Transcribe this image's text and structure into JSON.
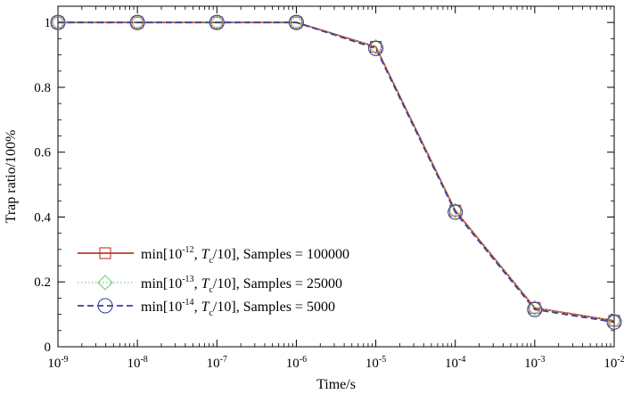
{
  "chart_data": {
    "type": "line",
    "title": "",
    "xlabel": "Time/s",
    "ylabel": "Trap ratio/100%",
    "xscale": "log",
    "xlim": [
      1e-09,
      0.01
    ],
    "ylim": [
      0,
      1.05
    ],
    "x": [
      1e-09,
      1e-08,
      1e-07,
      1e-06,
      1e-05,
      0.0001,
      0.001,
      0.01
    ],
    "x_tick_labels": [
      {
        "base": "10",
        "exp": "-9"
      },
      {
        "base": "10",
        "exp": "-8"
      },
      {
        "base": "10",
        "exp": "-7"
      },
      {
        "base": "10",
        "exp": "-6"
      },
      {
        "base": "10",
        "exp": "-5"
      },
      {
        "base": "10",
        "exp": "-4"
      },
      {
        "base": "10",
        "exp": "-3"
      },
      {
        "base": "10",
        "exp": "-2"
      }
    ],
    "y_ticks": [
      0,
      0.2,
      0.4,
      0.6,
      0.8,
      1
    ],
    "y_tick_labels": [
      "0",
      "0.2",
      "0.4",
      "0.6",
      "0.8",
      "1"
    ],
    "grid": false,
    "legend_position": "bottom-left",
    "series": [
      {
        "legend": {
          "pre": "min[10",
          "exp": "-12",
          "mid": ", ",
          "italic": "T",
          "sub": "c",
          "post": "/10], Samples = 100000"
        },
        "color": "#c0392b",
        "line": "solid",
        "marker": "square",
        "values": [
          1,
          1,
          1,
          1,
          0.925,
          0.42,
          0.12,
          0.08
        ]
      },
      {
        "legend": {
          "pre": "min[10",
          "exp": "-13",
          "mid": ", ",
          "italic": "T",
          "sub": "c",
          "post": "/10], Samples = 25000"
        },
        "color": "#7fc97f",
        "line": "dotted",
        "marker": "diamond",
        "values": [
          1,
          1,
          1,
          1,
          0.925,
          0.42,
          0.12,
          0.08
        ]
      },
      {
        "legend": {
          "pre": "min[10",
          "exp": "-14",
          "mid": ", ",
          "italic": "T",
          "sub": "c",
          "post": "/10], Samples = 5000"
        },
        "color": "#3f3f99",
        "line": "dashed",
        "marker": "circle",
        "values": [
          1,
          1,
          1,
          1,
          0.92,
          0.415,
          0.115,
          0.076
        ]
      }
    ]
  }
}
